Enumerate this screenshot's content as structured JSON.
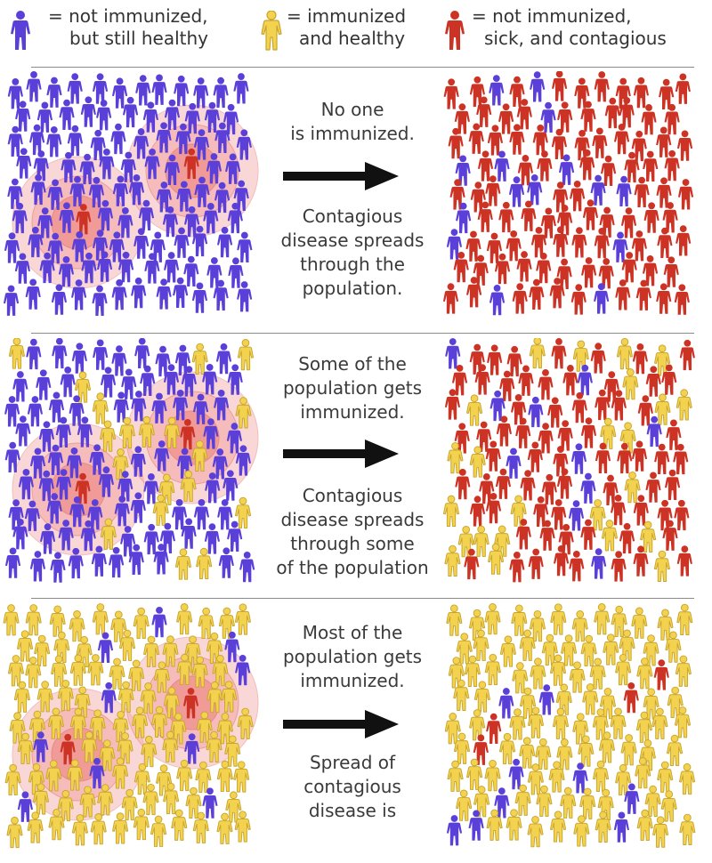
{
  "colors": {
    "not_immunized": "#5a3fd9",
    "immunized": "#f2d24f",
    "immunized_outline": "#c9a52c",
    "sick": "#cc3324",
    "infection_ring": "#f3a7a5",
    "infection_core": "#ee8a86"
  },
  "legend": [
    {
      "type": "not_immunized",
      "label_line1": "= not immunized,",
      "label_line2": "but still healthy"
    },
    {
      "type": "immunized",
      "label_line1": "= immunized",
      "label_line2": "and healthy"
    },
    {
      "type": "sick",
      "label_line1": "= not immunized,",
      "label_line2": "sick, and contagious"
    }
  ],
  "panels": [
    {
      "caption_top": [
        "No one",
        "is immunized."
      ],
      "caption_bottom": [
        "Contagious",
        "disease spreads",
        "through the",
        "population."
      ],
      "before_immunized_fraction": 0.0,
      "after_immunized_fraction": 0.0
    },
    {
      "caption_top": [
        "Some of the",
        "population gets",
        "immunized."
      ],
      "caption_bottom": [
        "Contagious",
        "disease spreads",
        "through some",
        "of the population"
      ],
      "before_immunized_fraction": 0.25,
      "after_immunized_fraction": 0.25
    },
    {
      "caption_top": [
        "Most of the",
        "population gets",
        "immunized."
      ],
      "caption_bottom": [
        "Spread of",
        "contagious",
        "disease is"
      ],
      "before_immunized_fraction": 0.9,
      "after_immunized_fraction": 0.9
    }
  ],
  "icons": {
    "arrow": "right-arrow-icon",
    "person": "person-icon"
  }
}
